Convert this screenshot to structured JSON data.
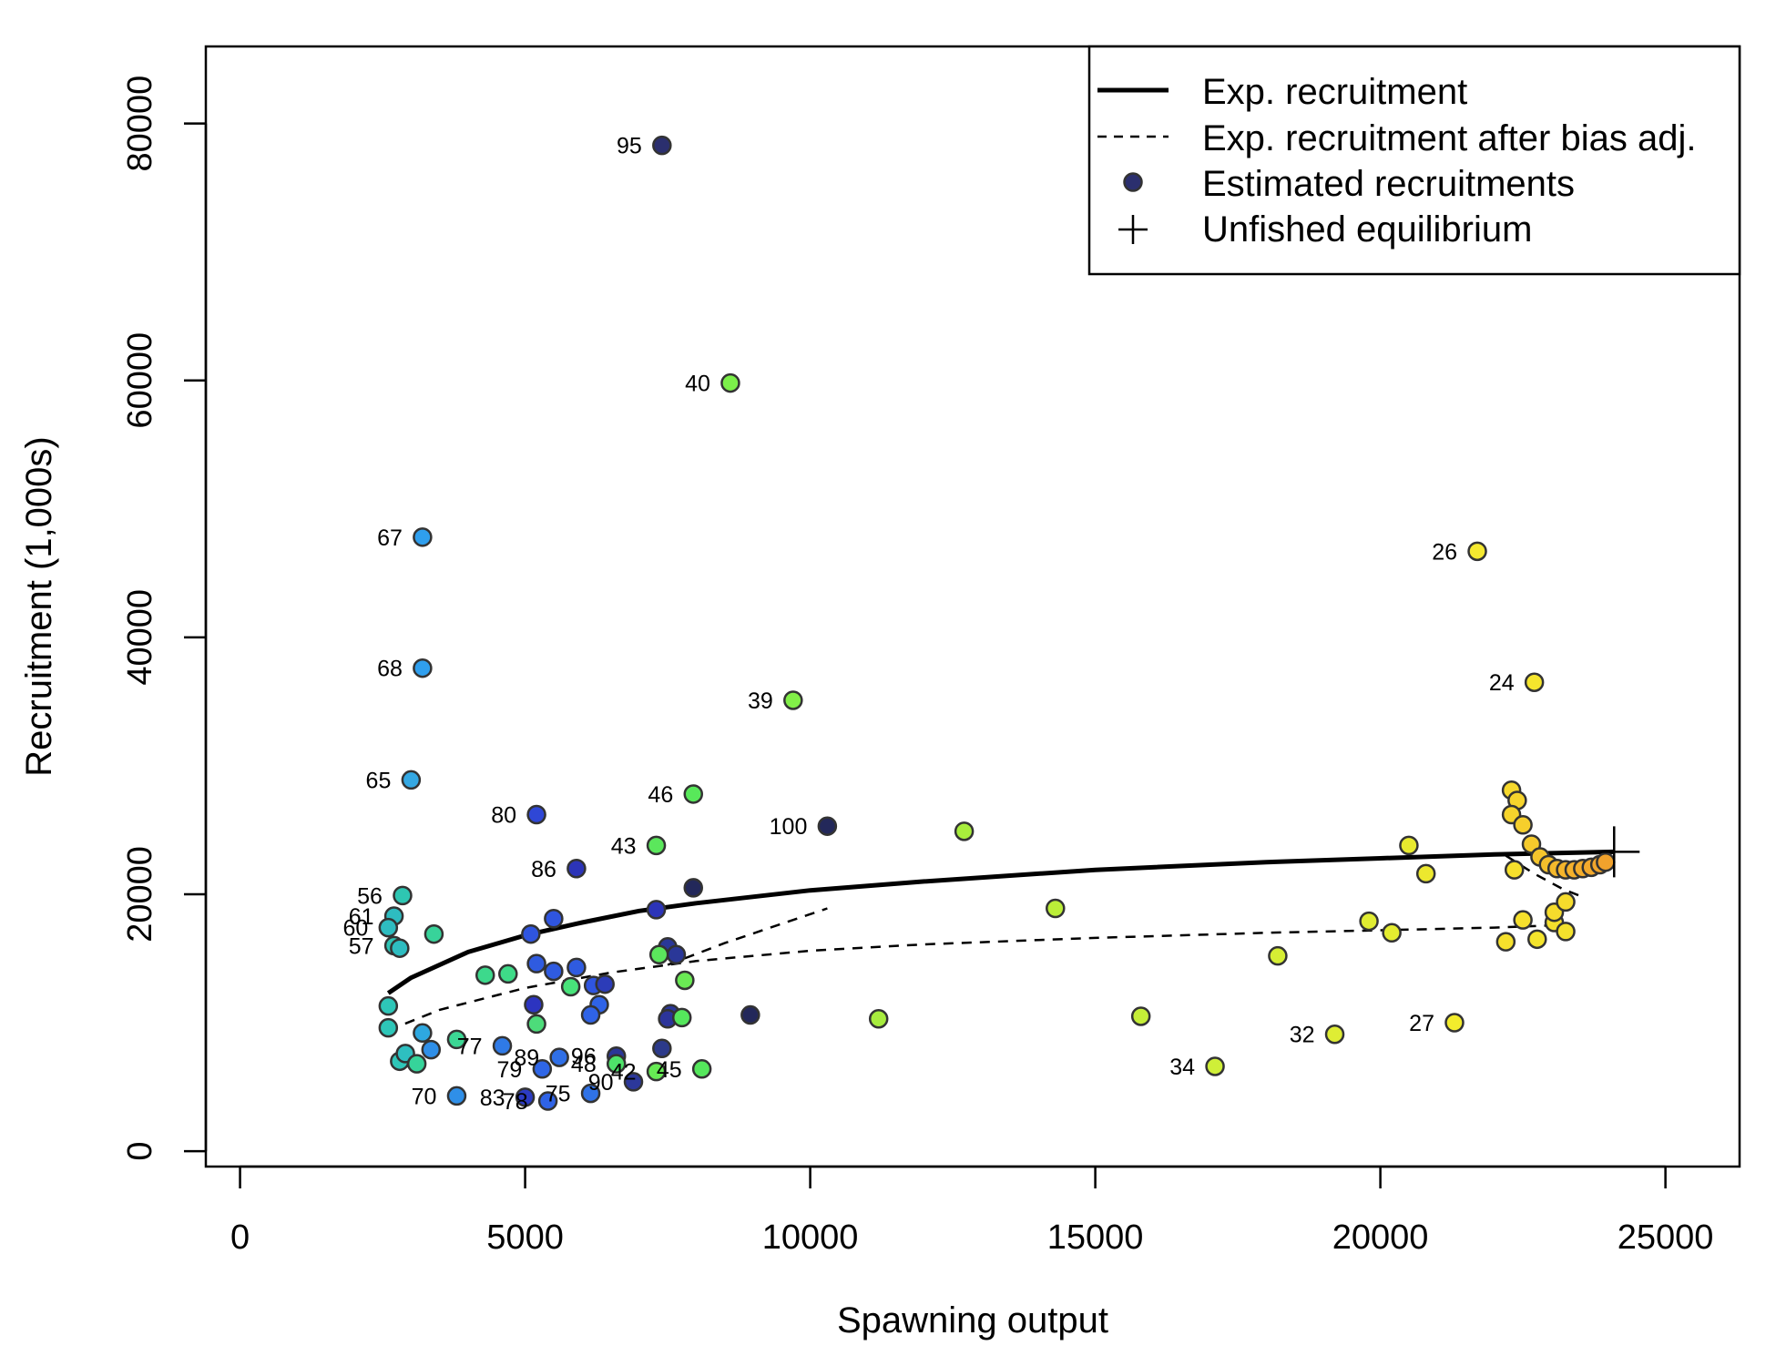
{
  "chart_data": {
    "type": "scatter",
    "title": "",
    "xlabel": "Spawning output",
    "ylabel": "Recruitment (1,000s)",
    "xlim": [
      -600,
      26300
    ],
    "ylim": [
      -1200,
      86000
    ],
    "x_ticks": [
      0,
      5000,
      10000,
      15000,
      20000,
      25000
    ],
    "y_ticks": [
      0,
      20000,
      40000,
      60000,
      80000
    ],
    "x_tick_labels": [
      "0",
      "5000",
      "10000",
      "15000",
      "20000",
      "25000"
    ],
    "y_tick_labels": [
      "0",
      "20000",
      "40000",
      "60000",
      "80000"
    ],
    "grid": false,
    "legend": {
      "placement": "top-right",
      "entries": [
        {
          "label": "Exp. recruitment",
          "symbol": "solid-line"
        },
        {
          "label": "Exp. recruitment after bias adj.",
          "symbol": "dashed-line"
        },
        {
          "label": "Estimated recruitments",
          "symbol": "filled-circle"
        },
        {
          "label": "Unfished equilibrium",
          "symbol": "plus"
        }
      ]
    },
    "exp_recruitment_curve": {
      "x": [
        2600,
        3000,
        4000,
        5000,
        6000,
        7000,
        8000,
        10000,
        12000,
        15000,
        18000,
        20000,
        22000,
        24100
      ],
      "y": [
        12300,
        13500,
        15500,
        16800,
        17800,
        18700,
        19300,
        20300,
        21000,
        21900,
        22500,
        22800,
        23100,
        23300
      ]
    },
    "bias_adjusted_curves": [
      {
        "x": [
          2600,
          3500,
          5000,
          6500,
          8000,
          10000,
          12000,
          15000,
          18000,
          20000,
          22000,
          23200
        ],
        "y": [
          9400,
          11000,
          12700,
          13900,
          14800,
          15600,
          16100,
          16600,
          17000,
          17200,
          17400,
          17600
        ]
      },
      {
        "x": [
          7500,
          8500,
          9500,
          10300
        ],
        "y": [
          14500,
          16200,
          17700,
          18900
        ]
      },
      {
        "x": [
          22200,
          22700,
          23200,
          23600
        ],
        "y": [
          23000,
          21600,
          20400,
          19700
        ]
      }
    ],
    "unfished_equilibrium": {
      "x": 24100,
      "y": 23300
    },
    "points": [
      {
        "x": 7400,
        "y": 78300,
        "label": "95",
        "color": "#2b2f6e"
      },
      {
        "x": 8600,
        "y": 59800,
        "label": "40",
        "color": "#7cf04a"
      },
      {
        "x": 3200,
        "y": 47800,
        "label": "67",
        "color": "#2f9fee"
      },
      {
        "x": 3200,
        "y": 37600,
        "label": "68",
        "color": "#2f9fee"
      },
      {
        "x": 9700,
        "y": 35100,
        "label": "39",
        "color": "#82ef48"
      },
      {
        "x": 3000,
        "y": 28900,
        "label": "65",
        "color": "#34a8e3"
      },
      {
        "x": 7950,
        "y": 27800,
        "label": "46",
        "color": "#58e85a"
      },
      {
        "x": 5200,
        "y": 26200,
        "label": "80",
        "color": "#2f47d6"
      },
      {
        "x": 10300,
        "y": 25300,
        "label": "100",
        "color": "#23285a"
      },
      {
        "x": 7300,
        "y": 23800,
        "label": "43",
        "color": "#5be75c"
      },
      {
        "x": 5900,
        "y": 22000,
        "label": "86",
        "color": "#2c34b8"
      },
      {
        "x": 2850,
        "y": 19900,
        "label": "56",
        "color": "#2ec6b2"
      },
      {
        "x": 2700,
        "y": 18300,
        "label": "61",
        "color": "#2ebcc0"
      },
      {
        "x": 2600,
        "y": 17400,
        "label": "60",
        "color": "#2ebcc0"
      },
      {
        "x": 2700,
        "y": 16000,
        "label": "57",
        "color": "#2ec3b4"
      },
      {
        "x": 21700,
        "y": 46700,
        "label": "26",
        "color": "#f5e930"
      },
      {
        "x": 22700,
        "y": 36500,
        "label": "24",
        "color": "#f5e52d"
      },
      {
        "x": 21300,
        "y": 10000,
        "label": "27",
        "color": "#f3ec2c"
      },
      {
        "x": 19200,
        "y": 9100,
        "label": "32",
        "color": "#dfed34"
      },
      {
        "x": 17100,
        "y": 6600,
        "label": "34",
        "color": "#cfef38"
      },
      {
        "x": 3800,
        "y": 4300,
        "label": "70",
        "color": "#2f8fe8"
      },
      {
        "x": 4600,
        "y": 8200,
        "label": "77",
        "color": "#2f7ae6"
      },
      {
        "x": 5000,
        "y": 4200,
        "label": "83",
        "color": "#2c3bc4"
      },
      {
        "x": 5400,
        "y": 3900,
        "label": "78",
        "color": "#2f63e6"
      },
      {
        "x": 5300,
        "y": 6400,
        "label": "79",
        "color": "#2f66e6"
      },
      {
        "x": 5600,
        "y": 7300,
        "label": "89",
        "color": "#2f6fe6"
      },
      {
        "x": 6150,
        "y": 4500,
        "label": "75",
        "color": "#2f72e6"
      },
      {
        "x": 6600,
        "y": 7400,
        "label": "96",
        "color": "#2a3798"
      },
      {
        "x": 6600,
        "y": 6800,
        "label": "48",
        "color": "#4ee36a"
      },
      {
        "x": 6900,
        "y": 5400,
        "label": "90",
        "color": "#2c389a"
      },
      {
        "x": 7300,
        "y": 6200,
        "label": "42",
        "color": "#66ea54"
      },
      {
        "x": 8100,
        "y": 6400,
        "label": "45",
        "color": "#55e75c"
      },
      {
        "x": 2600,
        "y": 9600,
        "label": "",
        "color": "#2ec6b8"
      },
      {
        "x": 2800,
        "y": 7000,
        "label": "",
        "color": "#2ec6b8"
      },
      {
        "x": 2900,
        "y": 7600,
        "label": "",
        "color": "#2ebfc0"
      },
      {
        "x": 3100,
        "y": 6800,
        "label": "",
        "color": "#36d49a"
      },
      {
        "x": 3200,
        "y": 9200,
        "label": "",
        "color": "#2ea8e0"
      },
      {
        "x": 3350,
        "y": 7900,
        "label": "",
        "color": "#2f8fe8"
      },
      {
        "x": 3400,
        "y": 16900,
        "label": "",
        "color": "#38d39a"
      },
      {
        "x": 3800,
        "y": 8700,
        "label": "",
        "color": "#3cd794"
      },
      {
        "x": 2600,
        "y": 11300,
        "label": "",
        "color": "#2ec6b8"
      },
      {
        "x": 2800,
        "y": 15800,
        "label": "",
        "color": "#2ebcc0"
      },
      {
        "x": 4300,
        "y": 13700,
        "label": "",
        "color": "#3dd98c"
      },
      {
        "x": 4700,
        "y": 13800,
        "label": "",
        "color": "#3edb88"
      },
      {
        "x": 5100,
        "y": 16900,
        "label": "",
        "color": "#2f55e0"
      },
      {
        "x": 5500,
        "y": 18100,
        "label": "",
        "color": "#2f55e0"
      },
      {
        "x": 5200,
        "y": 14600,
        "label": "",
        "color": "#2f5be0"
      },
      {
        "x": 5500,
        "y": 14000,
        "label": "",
        "color": "#2f5be0"
      },
      {
        "x": 5900,
        "y": 14300,
        "label": "",
        "color": "#2f5be0"
      },
      {
        "x": 5150,
        "y": 11400,
        "label": "",
        "color": "#2c34c0"
      },
      {
        "x": 5200,
        "y": 9900,
        "label": "",
        "color": "#4ddc7a"
      },
      {
        "x": 5800,
        "y": 12800,
        "label": "",
        "color": "#48e37a"
      },
      {
        "x": 6200,
        "y": 12900,
        "label": "",
        "color": "#2f55e0"
      },
      {
        "x": 6400,
        "y": 13000,
        "label": "",
        "color": "#2c3cb8"
      },
      {
        "x": 6300,
        "y": 11400,
        "label": "",
        "color": "#2f63e6"
      },
      {
        "x": 6150,
        "y": 10600,
        "label": "",
        "color": "#2f63e6"
      },
      {
        "x": 7300,
        "y": 18800,
        "label": "",
        "color": "#2c34b8"
      },
      {
        "x": 7950,
        "y": 20500,
        "label": "",
        "color": "#23285a"
      },
      {
        "x": 7500,
        "y": 15900,
        "label": "",
        "color": "#2a3798"
      },
      {
        "x": 7650,
        "y": 15300,
        "label": "",
        "color": "#2a3798"
      },
      {
        "x": 7350,
        "y": 15300,
        "label": "",
        "color": "#5be75c"
      },
      {
        "x": 7800,
        "y": 13300,
        "label": "",
        "color": "#6aea54"
      },
      {
        "x": 7550,
        "y": 10700,
        "label": "",
        "color": "#2a3798"
      },
      {
        "x": 7500,
        "y": 10300,
        "label": "",
        "color": "#2c349a"
      },
      {
        "x": 7750,
        "y": 10400,
        "label": "",
        "color": "#55e75c"
      },
      {
        "x": 7400,
        "y": 8000,
        "label": "",
        "color": "#2c3a8a"
      },
      {
        "x": 8950,
        "y": 10600,
        "label": "",
        "color": "#23285a"
      },
      {
        "x": 11200,
        "y": 10300,
        "label": "",
        "color": "#a7ec3e"
      },
      {
        "x": 12700,
        "y": 24900,
        "label": "",
        "color": "#a8ee3c"
      },
      {
        "x": 14300,
        "y": 18900,
        "label": "",
        "color": "#bbee38"
      },
      {
        "x": 15800,
        "y": 10500,
        "label": "",
        "color": "#c5ee38"
      },
      {
        "x": 18200,
        "y": 15200,
        "label": "",
        "color": "#d6ee34"
      },
      {
        "x": 19800,
        "y": 17900,
        "label": "",
        "color": "#e0ec32"
      },
      {
        "x": 20200,
        "y": 17000,
        "label": "",
        "color": "#e4ec30"
      },
      {
        "x": 20500,
        "y": 23800,
        "label": "",
        "color": "#e8ea2e"
      },
      {
        "x": 20800,
        "y": 21600,
        "label": "",
        "color": "#ece82e"
      },
      {
        "x": 22200,
        "y": 16300,
        "label": "",
        "color": "#f5e02c"
      },
      {
        "x": 22300,
        "y": 28100,
        "label": "",
        "color": "#f6d82c"
      },
      {
        "x": 22400,
        "y": 27300,
        "label": "",
        "color": "#f6d42c"
      },
      {
        "x": 22300,
        "y": 26200,
        "label": "",
        "color": "#f6d42c"
      },
      {
        "x": 22500,
        "y": 25400,
        "label": "",
        "color": "#f6cf2c"
      },
      {
        "x": 22650,
        "y": 23900,
        "label": "",
        "color": "#f5ca2c"
      },
      {
        "x": 22800,
        "y": 22900,
        "label": "",
        "color": "#f5c52c"
      },
      {
        "x": 22350,
        "y": 21900,
        "label": "",
        "color": "#f6e02c"
      },
      {
        "x": 22950,
        "y": 22300,
        "label": "",
        "color": "#f5bf2c"
      },
      {
        "x": 23100,
        "y": 22000,
        "label": "",
        "color": "#f5b92c"
      },
      {
        "x": 23250,
        "y": 21900,
        "label": "",
        "color": "#f5b52c"
      },
      {
        "x": 23400,
        "y": 21900,
        "label": "",
        "color": "#f5b12c"
      },
      {
        "x": 23550,
        "y": 22000,
        "label": "",
        "color": "#f4ad2c"
      },
      {
        "x": 23700,
        "y": 22100,
        "label": "",
        "color": "#f3a92c"
      },
      {
        "x": 23850,
        "y": 22300,
        "label": "",
        "color": "#f2a62c"
      },
      {
        "x": 23950,
        "y": 22500,
        "label": "",
        "color": "#f1a22c"
      },
      {
        "x": 22500,
        "y": 18000,
        "label": "",
        "color": "#f6e02c"
      },
      {
        "x": 22750,
        "y": 16500,
        "label": "",
        "color": "#f4e42c"
      },
      {
        "x": 23050,
        "y": 17800,
        "label": "",
        "color": "#f6e02c"
      },
      {
        "x": 23050,
        "y": 18600,
        "label": "",
        "color": "#f6dc2c"
      },
      {
        "x": 23250,
        "y": 19400,
        "label": "",
        "color": "#f6dc2c"
      },
      {
        "x": 23250,
        "y": 17100,
        "label": "",
        "color": "#f4e22c"
      }
    ]
  }
}
